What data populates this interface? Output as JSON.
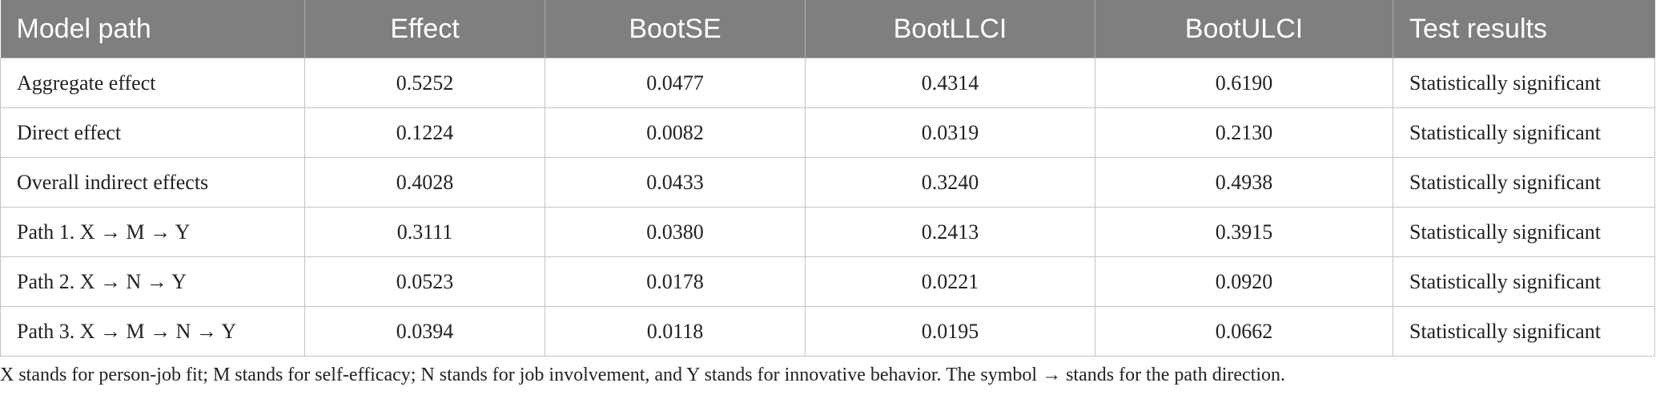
{
  "table": {
    "headers": [
      "Model path",
      "Effect",
      "BootSE",
      "BootLLCI",
      "BootULCI",
      "Test results"
    ],
    "rows": [
      [
        "Aggregate effect",
        "0.5252",
        "0.0477",
        "0.4314",
        "0.6190",
        "Statistically significant"
      ],
      [
        "Direct effect",
        "0.1224",
        "0.0082",
        "0.0319",
        "0.2130",
        "Statistically significant"
      ],
      [
        "Overall indirect effects",
        "0.4028",
        "0.0433",
        "0.3240",
        "0.4938",
        "Statistically significant"
      ],
      [
        "Path 1. X → M → Y",
        "0.3111",
        "0.0380",
        "0.2413",
        "0.3915",
        "Statistically significant"
      ],
      [
        "Path 2. X → N → Y",
        "0.0523",
        "0.0178",
        "0.0221",
        "0.0920",
        "Statistically significant"
      ],
      [
        "Path 3. X → M → N → Y",
        "0.0394",
        "0.0118",
        "0.0195",
        "0.0662",
        "Statistically significant"
      ]
    ]
  },
  "footnote": "X stands for person-job fit; M stands for self-efficacy; N stands for job involvement, and Y stands for innovative behavior. The symbol → stands for the path direction.",
  "colors": {
    "header_background": "#7f7f7f",
    "header_text": "#ffffff",
    "grid_line": "#c4c4c4"
  }
}
